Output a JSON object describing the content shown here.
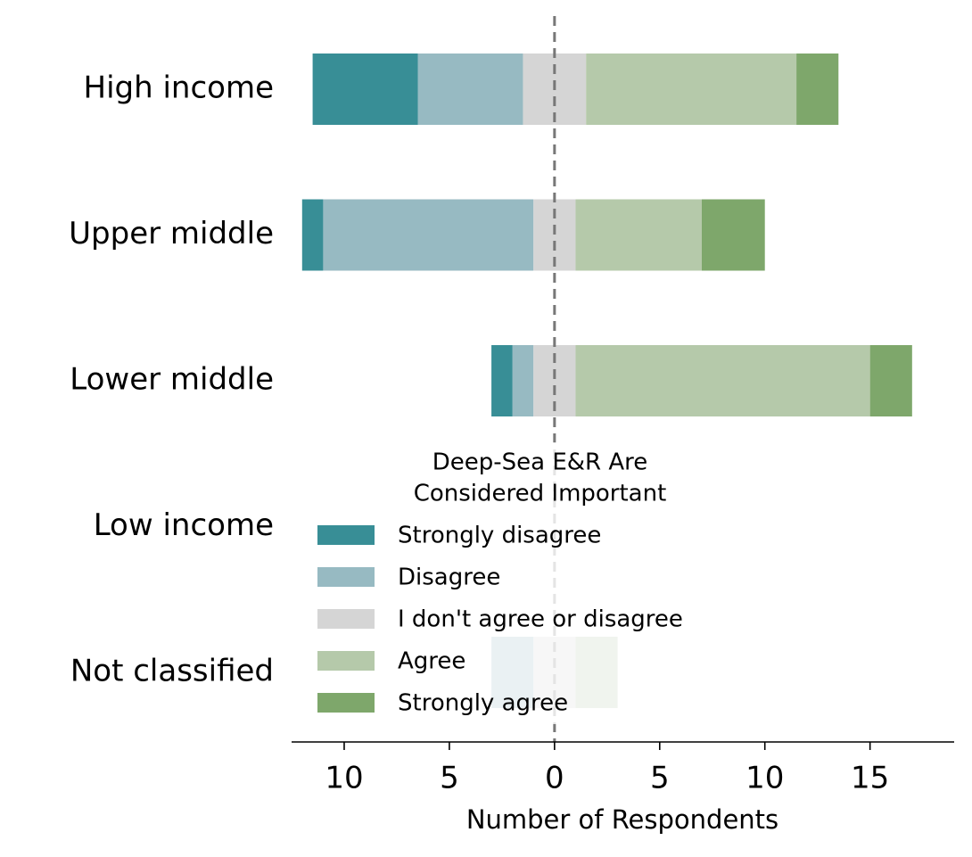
{
  "chart_data": {
    "type": "diverging-bar",
    "categories": [
      "High income",
      "Upper middle",
      "Lower middle",
      "Low income",
      "Not classified"
    ],
    "series": [
      {
        "name": "Strongly disagree",
        "color": "#388e96",
        "values": [
          5,
          1,
          1,
          0,
          0
        ]
      },
      {
        "name": "Disagree",
        "color": "#97bac2",
        "values": [
          5,
          10,
          1,
          0,
          2
        ]
      },
      {
        "name": "I don't agree or disagree",
        "color": "#d5d5d5",
        "values": [
          3,
          2,
          2,
          0,
          2
        ]
      },
      {
        "name": "Agree",
        "color": "#b5c9aa",
        "values": [
          10,
          6,
          14,
          0,
          2
        ]
      },
      {
        "name": "Strongly agree",
        "color": "#7ea76b",
        "values": [
          2,
          3,
          2,
          0,
          0
        ]
      }
    ],
    "xlabel": "Number of Respondents",
    "xlim": [
      -12.5,
      19
    ],
    "xticks": [
      {
        "value": -10,
        "label": "10"
      },
      {
        "value": -5,
        "label": "5"
      },
      0,
      5,
      10,
      15
    ],
    "legend_title": [
      "Deep-Sea E&R Are",
      "Considered Important"
    ],
    "legend_loc": "lower center"
  }
}
